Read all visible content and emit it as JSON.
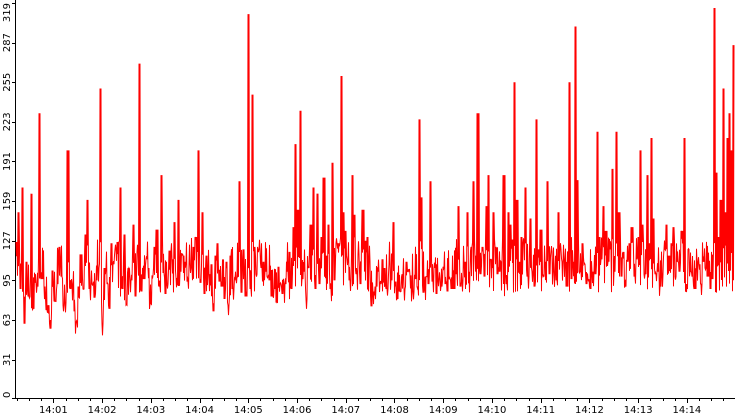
{
  "chart_data": {
    "type": "line",
    "title": "",
    "xlabel": "",
    "ylabel": "",
    "ylim": [
      0,
      319
    ],
    "y_ticks": [
      0,
      31,
      63,
      95,
      127,
      159,
      191,
      223,
      255,
      287,
      319
    ],
    "x_ticks": [
      "14:01",
      "14:02",
      "14:03",
      "14:04",
      "14:05",
      "14:06",
      "14:07",
      "14:08",
      "14:09",
      "14:10",
      "14:11",
      "14:12",
      "14:13",
      "14:14"
    ],
    "x_range": [
      "14:00:14",
      "14:14:58"
    ],
    "grid": false,
    "legend": "none",
    "series_color": "#ff0000",
    "series": [
      {
        "values": [
          126,
          150,
          88,
          170,
          60,
          110,
          82,
          165,
          72,
          93,
          90,
          230,
          96,
          90,
          71,
          75,
          56,
          103,
          78,
          92,
          122,
          98,
          75,
          77,
          200,
          88,
          92,
          70,
          61,
          90,
          116,
          88,
          132,
          160,
          88,
          92,
          81,
          95,
          105,
          250,
          60,
          105,
          92,
          72,
          125,
          108,
          120,
          126,
          170,
          88,
          132,
          75,
          105,
          95,
          140,
          82,
          118,
          270,
          86,
          96,
          112,
          105,
          76,
          99,
          122,
          136,
          90,
          180,
          101,
          84,
          92,
          119,
          112,
          142,
          97,
          160,
          102,
          115,
          110,
          94,
          108,
          105,
          122,
          130,
          200,
          93,
          150,
          84,
          115,
          100,
          108,
          70,
          115,
          125,
          94,
          90,
          80,
          110,
          75,
          115,
          88,
          96,
          98,
          175,
          85,
          120,
          82,
          310,
          88,
          245,
          122,
          100,
          120,
          105,
          110,
          102,
          98,
          95,
          82,
          88,
          77,
          106,
          92,
          84,
          92,
          102,
          118,
          88,
          138,
          205,
          152,
          232,
          96,
          102,
          80,
          105,
          140,
          170,
          88,
          165,
          92,
          130,
          178,
          115,
          140,
          88,
          190,
          95,
          125,
          125,
          260,
          150,
          135,
          112,
          95,
          180,
          148,
          100,
          116,
          92,
          152,
          127,
          130,
          110,
          74,
          86,
          90,
          102,
          92,
          112,
          105,
          88,
          108,
          95,
          142,
          94,
          80,
          86,
          100,
          88,
          110,
          102,
          99,
          86,
          96,
          90,
          225,
          162,
          85,
          98,
          92,
          175,
          94,
          105,
          84,
          96,
          90,
          106,
          92,
          86,
          96,
          88,
          88,
          100,
          155,
          90,
          95,
          110,
          150,
          102,
          122,
          175,
          115,
          230,
          100,
          122,
          98,
          155,
          180,
          112,
          150,
          122,
          100,
          102,
          110,
          180,
          92,
          150,
          140,
          128,
          255,
          160,
          110,
          130,
          125,
          170,
          98,
          145,
          102,
          90,
          225,
          120,
          136,
          98,
          110,
          175,
          100,
          118,
          102,
          95,
          150,
          120,
          110,
          112,
          90,
          255,
          96,
          110,
          300,
          176,
          102,
          125,
          108,
          92,
          96,
          88,
          102,
          100,
          215,
          130,
          112,
          155,
          135,
          110,
          120,
          185,
          102,
          215,
          150,
          98,
          118,
          90,
          110,
          125,
          138,
          98,
          112,
          130,
          200,
          140,
          100,
          180,
          125,
          210,
          145,
          100,
          102,
          90,
          100,
          120,
          140,
          115,
          125,
          138,
          98,
          110,
          102,
          135,
          210,
          92,
          120,
          102,
          98,
          88,
          110,
          108,
          92,
          110,
          105,
          98,
          88,
          96,
          315,
          182,
          130,
          160,
          250,
          150,
          210,
          230,
          200,
          285
        ],
        "rendered_max": 319
      }
    ]
  }
}
